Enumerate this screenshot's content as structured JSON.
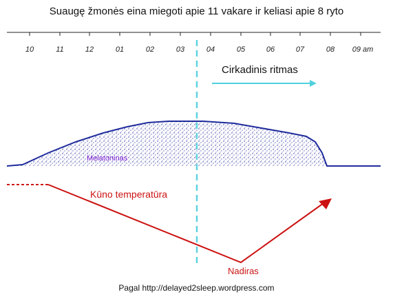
{
  "title": "Suaugę žmonės eina miegoti apie 11 vakare ir keliasi apie 8 ryto",
  "hours": [
    "10",
    "11",
    "12",
    "01",
    "02",
    "03",
    "04",
    "05",
    "06",
    "07",
    "08",
    "09 am"
  ],
  "labels": {
    "circadian": "Cirkadinis ritmas",
    "melatonin": "Melatoninas",
    "body_temperature": "Kūno temperatūra",
    "nadir": "Nadiras"
  },
  "source": "Pagal http://delayed2sleep.wordpress.com",
  "colors": {
    "melatonin": "#1f2b9c",
    "temperature": "#cc1111",
    "marker": "#5fd3e0",
    "circadian_arrow": "#4fd0dd"
  }
}
